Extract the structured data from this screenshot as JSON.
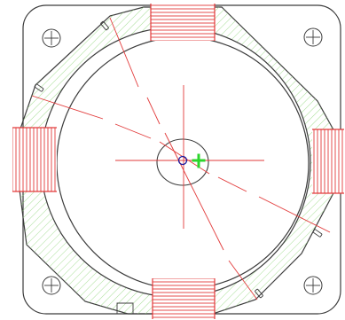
{
  "drawing": {
    "outline_color": "#3c3c3c",
    "hatch_color": "#8fd67a",
    "coil_color": "#e23a3a",
    "centerline_color": "#e23a3a",
    "marker_color": "#2bd62b",
    "origin_color": "#1a1aa0",
    "background_color": "#ffffff"
  },
  "features": {
    "mounting_holes": [
      "top-left",
      "top-right",
      "bottom-left",
      "bottom-right"
    ],
    "coils": [
      "top",
      "bottom",
      "left",
      "right"
    ],
    "slots": 4
  }
}
